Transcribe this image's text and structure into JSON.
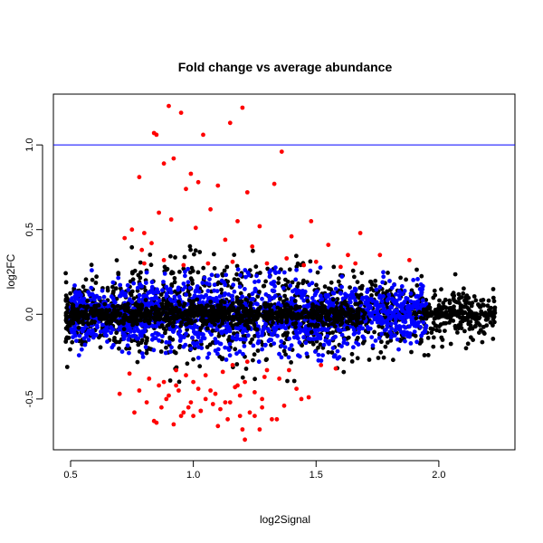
{
  "chart_data": {
    "type": "scatter",
    "title": "Fold change vs average abundance",
    "xlabel": "log2Signal",
    "ylabel": "log2FC",
    "xlim": [
      0.43,
      2.31
    ],
    "ylim": [
      -0.8,
      1.3
    ],
    "xticks": [
      "0.5",
      "1.0",
      "1.5",
      "2.0"
    ],
    "yticks": [
      "-0.5",
      "0.0",
      "0.5",
      "1.0"
    ],
    "hline": {
      "y": 1.0,
      "color": "#0000ff"
    },
    "grid": false,
    "legend": "none",
    "colors": {
      "background": "#000000",
      "cloud": "#0000ff",
      "outliers": "#ff0000"
    },
    "series": [
      {
        "color": "#ff0000",
        "x": [
          0.9,
          0.95,
          0.85,
          0.84,
          1.04,
          1.15,
          1.2,
          0.88,
          0.92,
          1.36,
          0.78,
          0.99,
          0.97,
          1.02,
          1.1,
          1.22,
          1.33,
          1.48,
          1.68,
          1.76,
          1.88,
          0.75,
          0.8,
          0.86,
          1.07,
          1.18,
          1.27,
          1.4,
          1.55,
          1.63,
          0.72,
          0.79,
          0.83,
          0.91,
          1.01,
          1.13,
          1.24,
          1.38,
          1.5,
          1.66,
          0.8,
          0.88,
          0.96,
          1.06,
          1.16,
          1.3,
          1.45,
          1.6,
          0.74,
          0.82,
          0.93,
          1.05,
          1.12,
          1.21,
          1.29,
          1.39,
          1.52,
          0.86,
          0.94,
          1.0,
          1.09,
          1.17,
          1.25,
          1.35,
          1.58,
          0.7,
          0.81,
          0.89,
          0.98,
          1.08,
          1.19,
          1.28,
          1.42,
          0.76,
          0.87,
          0.95,
          1.03,
          1.14,
          1.23,
          1.37,
          1.47,
          0.84,
          0.92,
          1.0,
          1.1,
          1.2,
          1.32,
          1.44,
          0.78,
          0.9,
          0.99,
          1.11,
          1.19,
          1.28,
          0.85,
          0.96,
          1.05,
          1.15,
          1.25,
          1.34,
          0.88,
          1.02,
          1.18,
          1.21,
          1.27,
          0.93,
          1.07,
          1.13,
          1.03,
          0.97,
          1.16,
          1.22,
          1.3
        ],
        "y": [
          1.23,
          1.19,
          1.06,
          1.07,
          1.06,
          1.13,
          1.22,
          0.89,
          0.92,
          0.96,
          0.81,
          0.83,
          0.74,
          0.78,
          0.76,
          0.72,
          0.77,
          0.55,
          0.48,
          0.35,
          0.32,
          0.5,
          0.48,
          0.6,
          0.62,
          0.55,
          0.52,
          0.46,
          0.41,
          0.35,
          0.45,
          0.38,
          0.42,
          0.56,
          0.51,
          0.44,
          0.4,
          0.33,
          0.31,
          0.3,
          0.3,
          0.32,
          0.29,
          0.3,
          0.31,
          0.3,
          0.29,
          0.28,
          -0.35,
          -0.38,
          -0.33,
          -0.36,
          -0.34,
          -0.4,
          -0.37,
          -0.33,
          -0.3,
          -0.42,
          -0.45,
          -0.4,
          -0.47,
          -0.43,
          -0.46,
          -0.38,
          -0.32,
          -0.47,
          -0.52,
          -0.5,
          -0.55,
          -0.53,
          -0.48,
          -0.5,
          -0.44,
          -0.58,
          -0.55,
          -0.6,
          -0.57,
          -0.62,
          -0.58,
          -0.54,
          -0.49,
          -0.63,
          -0.65,
          -0.6,
          -0.66,
          -0.68,
          -0.62,
          -0.5,
          -0.45,
          -0.48,
          -0.52,
          -0.56,
          -0.6,
          -0.55,
          -0.64,
          -0.58,
          -0.5,
          -0.52,
          -0.6,
          -0.62,
          -0.4,
          -0.44,
          -0.42,
          -0.74,
          -0.68,
          -0.42,
          -0.45,
          -0.52,
          -0.57,
          -0.36,
          -0.3,
          -0.28,
          -0.33
        ]
      }
    ]
  }
}
